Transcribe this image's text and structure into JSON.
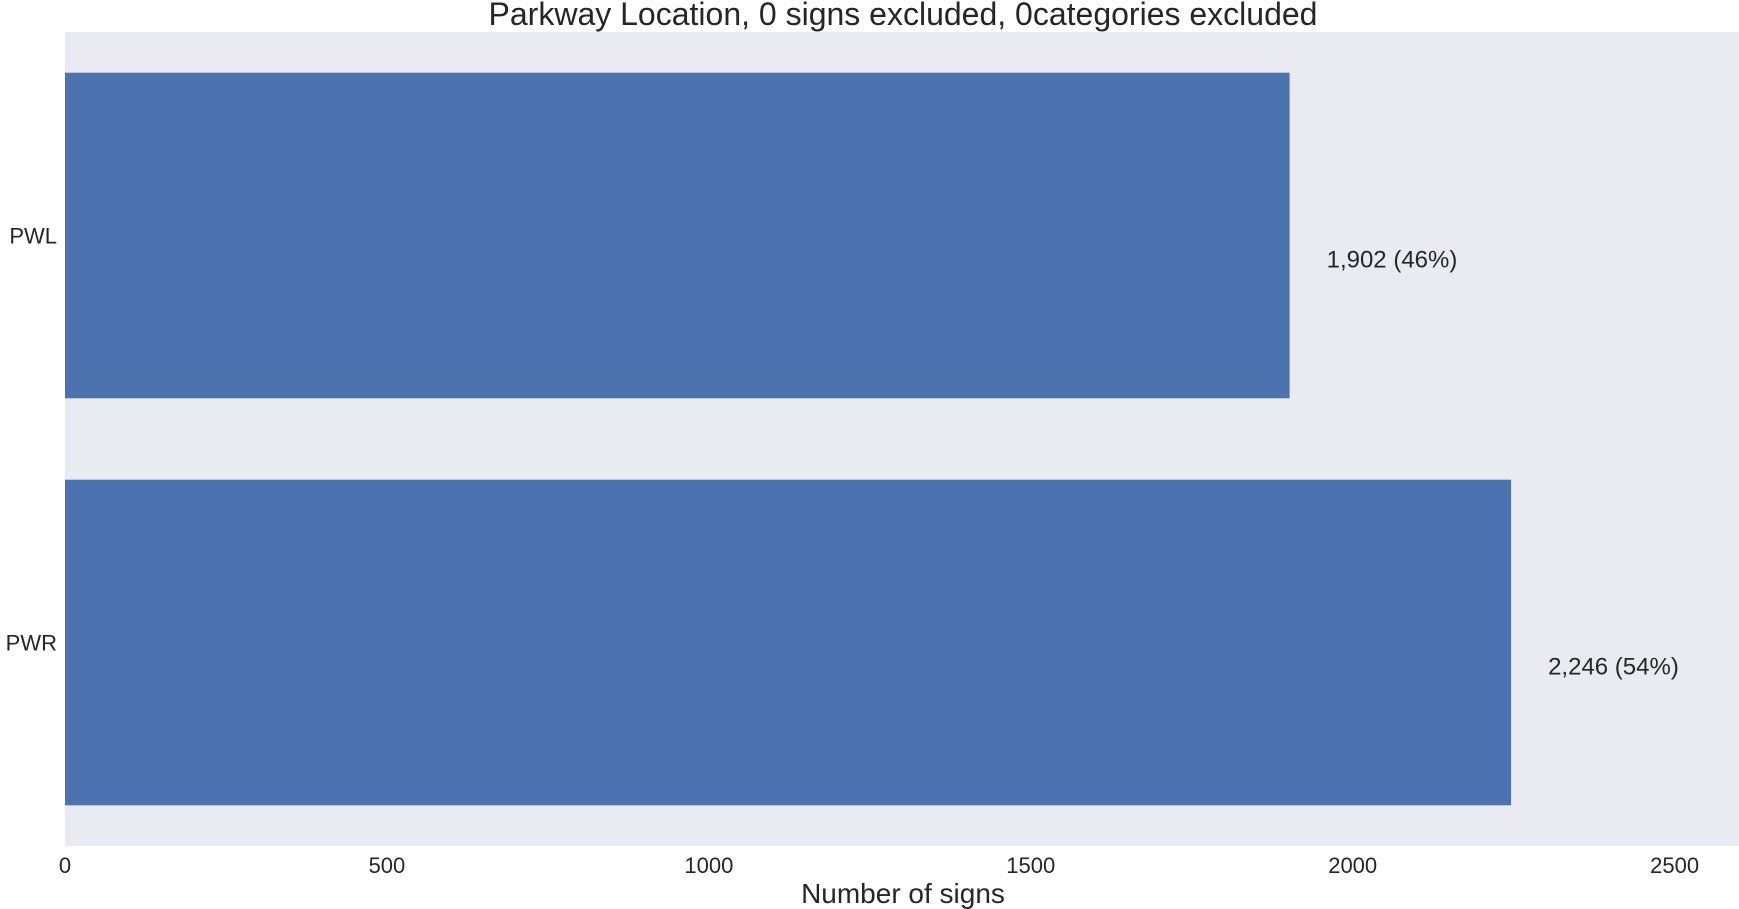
{
  "chart_data": {
    "type": "bar",
    "orientation": "horizontal",
    "title": "Parkway Location, 0 signs excluded, 0categories excluded",
    "xlabel": "Number of signs",
    "ylabel": "",
    "categories": [
      "PWL",
      "PWR"
    ],
    "values": [
      1902,
      2246
    ],
    "data_labels": [
      "1,902 (46%)",
      "2,246 (54%)"
    ],
    "xlim": [
      0,
      2600
    ],
    "xticks": [
      0,
      500,
      1000,
      1500,
      2000,
      2500
    ],
    "xtick_labels": [
      "0",
      "500",
      "1000",
      "1500",
      "2000",
      "2500"
    ],
    "grid": false,
    "bar_color": "#4c72b0",
    "background_color": "#eaeaf2"
  }
}
